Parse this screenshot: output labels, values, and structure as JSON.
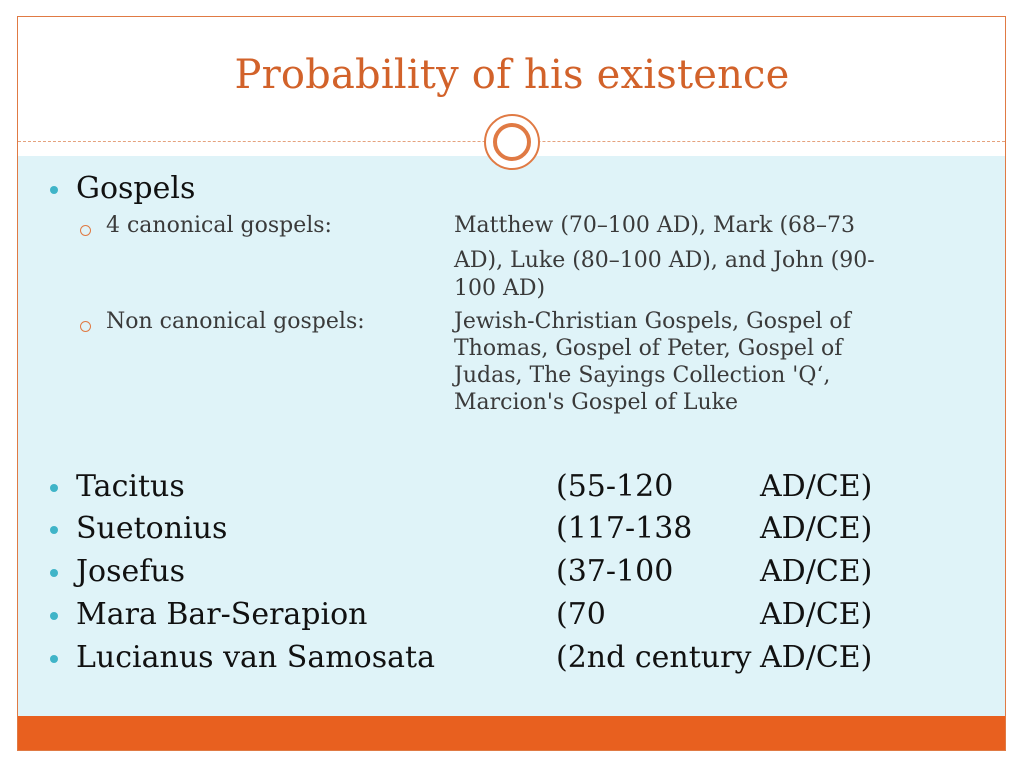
{
  "slide": {
    "title": "Probability of his existence"
  },
  "gospels": {
    "label": "Gospels",
    "items": [
      {
        "label": "4 canonical gospels:",
        "desc_lines": [
          "Matthew (70–100 AD), Mark (68–73",
          "AD), Luke (80–100 AD), and John (90-",
          "100 AD)"
        ]
      },
      {
        "label": "Non canonical gospels:",
        "desc_lines": [
          "Jewish-Christian Gospels, Gospel of",
          "Thomas, Gospel of Peter, Gospel of",
          "Judas, The Sayings Collection 'Q‘,",
          "Marcion's Gospel of Luke"
        ]
      }
    ]
  },
  "sources": [
    {
      "name": "Tacitus",
      "range": "(55-120",
      "era": "AD/CE)"
    },
    {
      "name": "Suetonius",
      "range": "(117-138",
      "era": "AD/CE)"
    },
    {
      "name": "Josefus",
      "range": "(37-100",
      "era": "AD/CE)"
    },
    {
      "name": "Mara Bar-Serapion",
      "range": "(70",
      "era": "AD/CE)"
    },
    {
      "name": "Lucianus van Samosata",
      "range": "(2nd century",
      "era": "AD/CE)"
    }
  ],
  "colors": {
    "accent": "#e07a44",
    "title": "#d2622a",
    "bullet": "#3fb4c8",
    "panel": "#dff3f8",
    "band": "#e8601f"
  }
}
